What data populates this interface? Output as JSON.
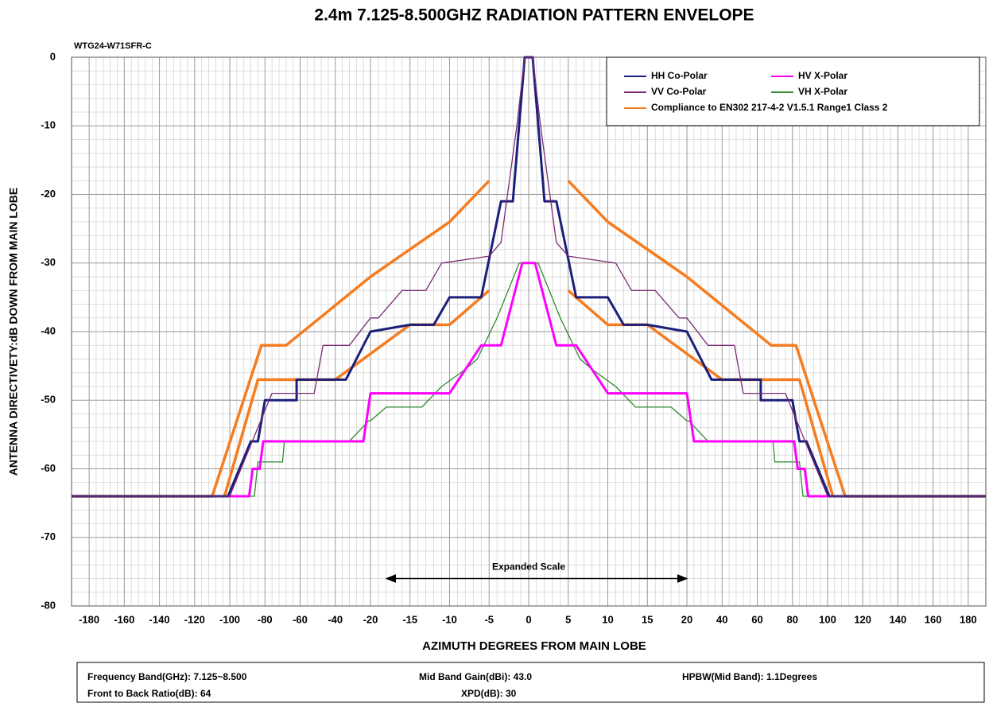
{
  "chart_data": {
    "type": "line",
    "title": "2.4m 7.125-8.500GHZ  RADIATION PATTERN ENVELOPE",
    "subtitle": "WTG24-W71SFR-C",
    "xlabel": "AZIMUTH DEGREES FROM MAIN LOBE",
    "ylabel": "ANTENNA DIRECTIVETY:dB DOWN FROM MAIN LOBE",
    "xlim": [
      -190,
      190
    ],
    "ylim": [
      -80,
      0
    ],
    "xticks": [
      -180,
      -160,
      -140,
      -120,
      -100,
      -80,
      -60,
      -40,
      -20,
      -15,
      -10,
      -5,
      0,
      5,
      10,
      15,
      20,
      40,
      60,
      80,
      100,
      120,
      140,
      160,
      180
    ],
    "yticks": [
      0,
      -10,
      -20,
      -30,
      -40,
      -50,
      -60,
      -70,
      -80
    ],
    "grid": true,
    "legend": "top-right",
    "annotations": [
      {
        "text": "Expanded Scale",
        "x": [
          -20,
          20
        ],
        "y": -76
      }
    ],
    "series": [
      {
        "name": "HH Co-Polar",
        "color": "#1b1f7a",
        "x": [
          -190,
          -101,
          -88,
          -84,
          -80,
          -62,
          -62,
          -34,
          -20,
          -15,
          -12,
          -10,
          -6,
          -3.5,
          -2,
          -0.5,
          0.5,
          2,
          3.5,
          6,
          10,
          12,
          15,
          20,
          34,
          62,
          62,
          80,
          84,
          88,
          101,
          190
        ],
        "values": [
          -64,
          -64,
          -56,
          -56,
          -50,
          -50,
          -47,
          -47,
          -40,
          -39,
          -39,
          -35,
          -35,
          -21,
          -21,
          0,
          0,
          -21,
          -21,
          -35,
          -35,
          -39,
          -39,
          -40,
          -47,
          -47,
          -50,
          -50,
          -56,
          -56,
          -64,
          -64
        ]
      },
      {
        "name": "HV X-Polar",
        "color": "#ff00ff",
        "x": [
          -190,
          -89,
          -87,
          -83,
          -81,
          -24,
          -20,
          -10,
          -6,
          -3.5,
          -0.8,
          0.8,
          3.5,
          6,
          10,
          20,
          24,
          81,
          83,
          87,
          89,
          190
        ],
        "values": [
          -64,
          -64,
          -60,
          -60,
          -56,
          -56,
          -49,
          -49,
          -42,
          -42,
          -30,
          -30,
          -42,
          -42,
          -49,
          -49,
          -56,
          -56,
          -60,
          -60,
          -64,
          -64
        ]
      },
      {
        "name": "VV Co-Polar",
        "color": "#7b2a73",
        "x": [
          -190,
          -100,
          -76,
          -52,
          -47,
          -32,
          -20,
          -19,
          -16,
          -13,
          -11,
          -5,
          -3.5,
          -1.5,
          -0.5,
          0.5,
          1.5,
          3.5,
          5,
          11,
          13,
          16,
          19,
          20,
          32,
          47,
          52,
          76,
          100,
          190
        ],
        "values": [
          -64,
          -64,
          -49,
          -49,
          -42,
          -42,
          -38,
          -38,
          -34,
          -34,
          -30,
          -29,
          -27,
          -10,
          0,
          0,
          -10,
          -27,
          -29,
          -30,
          -34,
          -34,
          -38,
          -38,
          -42,
          -42,
          -49,
          -49,
          -64,
          -64
        ]
      },
      {
        "name": "VH X-Polar",
        "color": "#2e8b2e",
        "x": [
          -190,
          -86,
          -84,
          -70,
          -69,
          -32,
          -21,
          -20,
          -18,
          -13.5,
          -11,
          -8,
          -6.5,
          -4,
          -1.2,
          1.2,
          4,
          6.5,
          8,
          11,
          13.5,
          18,
          20,
          21,
          32,
          69,
          70,
          84,
          86,
          190
        ],
        "values": [
          -64,
          -64,
          -59,
          -59,
          -56,
          -56,
          -53,
          -53,
          -51,
          -51,
          -48,
          -45.5,
          -44,
          -38,
          -30,
          -30,
          -38,
          -44,
          -45.5,
          -48,
          -51,
          -51,
          -53,
          -53,
          -56,
          -56,
          -59,
          -59,
          -64,
          -64
        ]
      },
      {
        "name": "Compliance to EN302 217-4-2 V1.5.1 Range1 Class 2",
        "color": "#f57c1f",
        "x": [
          -190,
          -110,
          -82,
          -68,
          -20,
          -10,
          -5,
          null,
          -103,
          -84,
          -40,
          -15,
          -10,
          -5,
          null,
          5,
          10,
          15,
          40,
          84,
          103,
          null,
          5,
          10,
          20,
          68,
          82,
          110,
          190
        ],
        "values": [
          -64,
          -64,
          -42,
          -42,
          -32,
          -24,
          -18,
          null,
          -64,
          -47,
          -47,
          -39,
          -39,
          -34,
          null,
          -34,
          -39,
          -39,
          -47,
          -47,
          -64,
          null,
          -18,
          -24,
          -32,
          -42,
          -42,
          -64,
          -64
        ]
      }
    ]
  },
  "footer": {
    "rows": [
      [
        "Frequency Band(GHz): 7.125~8.500",
        "Mid Band Gain(dBi): 43.0",
        "HPBW(Mid Band):  1.1Degrees"
      ],
      [
        "Front to Back Ratio(dB): 64",
        "XPD(dB): 30"
      ]
    ]
  }
}
